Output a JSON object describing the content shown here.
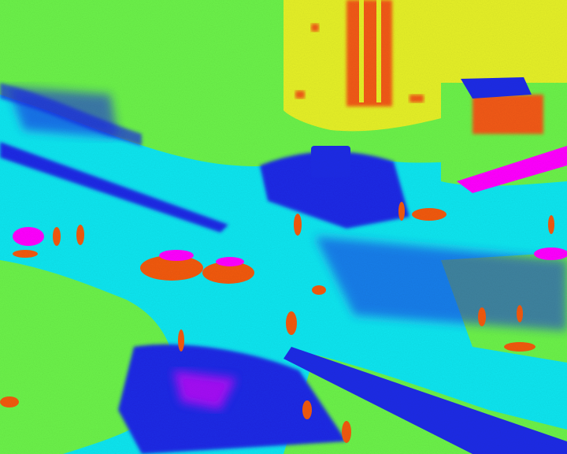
{
  "image": {
    "kind": "thermal-camera-view",
    "palette": {
      "cold": "#1e2ce6",
      "cool": "#12e6f0",
      "mild": "#6cf24a",
      "warm": "#e6f028",
      "hot": "#f25a12",
      "hottest": "#ff00ff"
    }
  }
}
